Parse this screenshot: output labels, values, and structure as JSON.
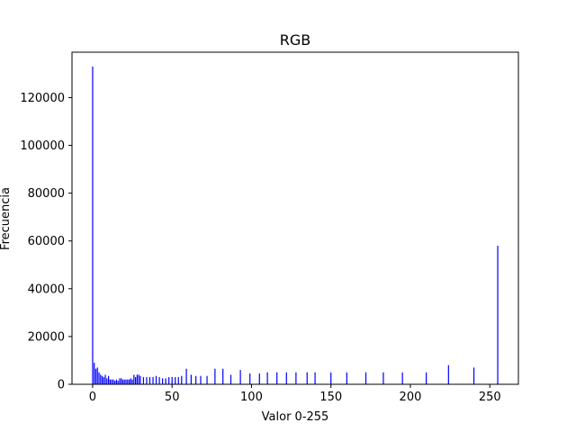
{
  "chart_data": {
    "type": "bar",
    "title": "RGB",
    "xlabel": "Valor 0-255",
    "ylabel": "Frecuencia",
    "xlim": [
      -13,
      268
    ],
    "ylim": [
      0,
      139000
    ],
    "xticks": [
      0,
      50,
      100,
      150,
      200,
      250
    ],
    "yticks": [
      0,
      20000,
      40000,
      60000,
      80000,
      100000,
      120000
    ],
    "bar_color": "#0000ff",
    "grid": false,
    "series": [
      {
        "x": [
          0,
          1,
          2,
          3,
          4,
          5,
          6,
          7,
          8,
          9,
          10,
          11,
          12,
          13,
          14,
          15,
          16,
          17,
          18,
          19,
          20,
          21,
          22,
          23,
          24,
          25,
          26,
          27,
          28,
          29,
          30,
          32,
          34,
          36,
          38,
          40,
          42,
          44,
          46,
          48,
          50,
          52,
          54,
          56,
          59,
          62,
          65,
          68,
          72,
          77,
          82,
          87,
          93,
          99,
          105,
          110,
          116,
          122,
          128,
          135,
          140,
          150,
          160,
          172,
          183,
          195,
          210,
          224,
          240,
          255
        ],
        "values": [
          133000,
          9000,
          6500,
          7000,
          5000,
          4000,
          3500,
          3000,
          4000,
          2500,
          3500,
          2000,
          2000,
          2000,
          1500,
          2000,
          1500,
          2500,
          2500,
          2000,
          2000,
          2000,
          2000,
          2000,
          2500,
          2000,
          4000,
          3000,
          4000,
          4000,
          3500,
          3000,
          3000,
          3000,
          3000,
          3500,
          3000,
          2500,
          2500,
          3000,
          3000,
          3000,
          3000,
          3500,
          6500,
          4000,
          3500,
          3500,
          3500,
          6500,
          6500,
          4000,
          6000,
          4500,
          4500,
          5000,
          5000,
          5000,
          5000,
          5000,
          5000,
          5000,
          5000,
          5000,
          5000,
          5000,
          5000,
          8000,
          7000,
          58000
        ]
      }
    ]
  }
}
